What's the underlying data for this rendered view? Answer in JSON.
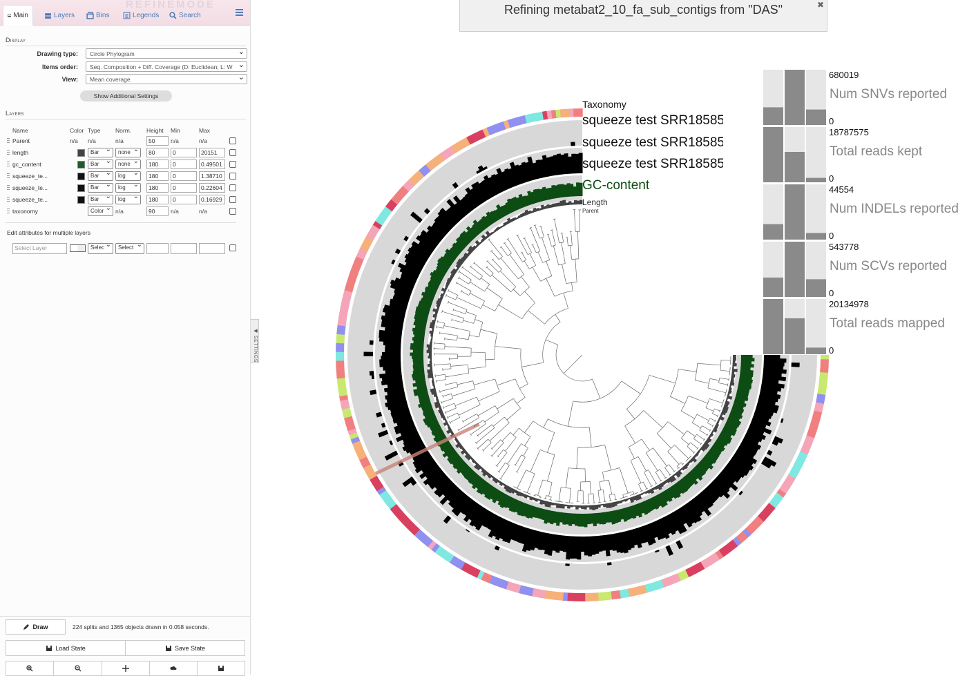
{
  "sidebar": {
    "watermark": "REFINEMODE",
    "tabs": [
      {
        "label": "Main",
        "icon": "image-icon"
      },
      {
        "label": "Layers",
        "icon": "layers-icon"
      },
      {
        "label": "Bins",
        "icon": "bins-icon"
      },
      {
        "label": "Legends",
        "icon": "legend-icon"
      },
      {
        "label": "Search",
        "icon": "search-icon"
      }
    ],
    "display": {
      "title": "Display",
      "drawing_type_label": "Drawing type:",
      "drawing_type": "Circle Phylogram",
      "items_order_label": "Items order:",
      "items_order": "Seq. Composition + Diff. Coverage (D: Euclidean; L: W",
      "view_label": "View:",
      "view": "Mean coverage",
      "show_additional": "Show Additional Settings"
    },
    "layers": {
      "title": "Layers",
      "headers": {
        "name": "Name",
        "color": "Color",
        "type": "Type",
        "norm": "Norm.",
        "height": "Height",
        "min": "Min",
        "max": "Max"
      },
      "rows": [
        {
          "name": "Parent",
          "color": "n/a",
          "type": "n/a",
          "norm": "n/a",
          "height": "50",
          "min": "n/a",
          "max": "n/a"
        },
        {
          "name": "length",
          "color": "#444444",
          "type": "Bar",
          "norm": "none",
          "height": "80",
          "min": "0",
          "max": "20151"
        },
        {
          "name": "gc_content",
          "color": "#1a5c2a",
          "type": "Bar",
          "norm": "none",
          "height": "180",
          "min": "0",
          "max": "0.49501"
        },
        {
          "name": "squeeze_te...",
          "color": "#111111",
          "type": "Bar",
          "norm": "log",
          "height": "180",
          "min": "0",
          "max": "1.38710"
        },
        {
          "name": "squeeze_te...",
          "color": "#111111",
          "type": "Bar",
          "norm": "log",
          "height": "180",
          "min": "0",
          "max": "0.22604"
        },
        {
          "name": "squeeze_te...",
          "color": "#111111",
          "type": "Bar",
          "norm": "log",
          "height": "180",
          "min": "0",
          "max": "0.16929"
        },
        {
          "name": "taxonomy",
          "color": "n/a",
          "type": "Color",
          "norm": "n/a",
          "height": "90",
          "min": "n/a",
          "max": "n/a"
        }
      ],
      "multi_title": "Edit attributes for multiple layers",
      "select_layer_placeholder": "Select Layer",
      "multi_type": "Selec",
      "multi_norm": "Select"
    },
    "draw_label": "Draw",
    "status": "224 splits and 1365 objects drawn in 0.058 seconds.",
    "load_state": "Load State",
    "save_state": "Save State",
    "settings_tab": "SETTINGS"
  },
  "banner": {
    "title": "Refining metabat2_10_fa_sub_contigs from \"DAS\""
  },
  "ring_labels": {
    "taxonomy": "Taxonomy",
    "sample1": "squeeze test SRR18585",
    "sample2": "squeeze test SRR18585",
    "sample3": "squeeze test SRR18585",
    "gc": "GC-content",
    "length": "Length",
    "parent": "Parent"
  },
  "bar_panels": [
    {
      "label": "Num SNVs reported",
      "max": "680019",
      "min": "0",
      "values": [
        0.32,
        1.0,
        0.28
      ]
    },
    {
      "label": "Total reads kept",
      "max": "18787575",
      "min": "0",
      "values": [
        1.0,
        0.55,
        0.08
      ]
    },
    {
      "label": "Num INDELs reported",
      "max": "44554",
      "min": "0",
      "values": [
        0.28,
        1.0,
        0.12
      ]
    },
    {
      "label": "Num SCVs reported",
      "max": "543778",
      "min": "0",
      "values": [
        0.35,
        1.0,
        0.32
      ]
    },
    {
      "label": "Total reads mapped",
      "max": "20134978",
      "min": "0",
      "values": [
        1.0,
        0.65,
        0.12
      ]
    }
  ],
  "colors": {
    "gc_ring": "#0d4d14",
    "coverage_ring": "#000000",
    "ring_background": "#d8d8d8",
    "taxonomy_palette": [
      "#f08080",
      "#7fe8e0",
      "#d94060",
      "#f4a6b8",
      "#c8e870",
      "#9090f0",
      "#f6b07a"
    ]
  }
}
